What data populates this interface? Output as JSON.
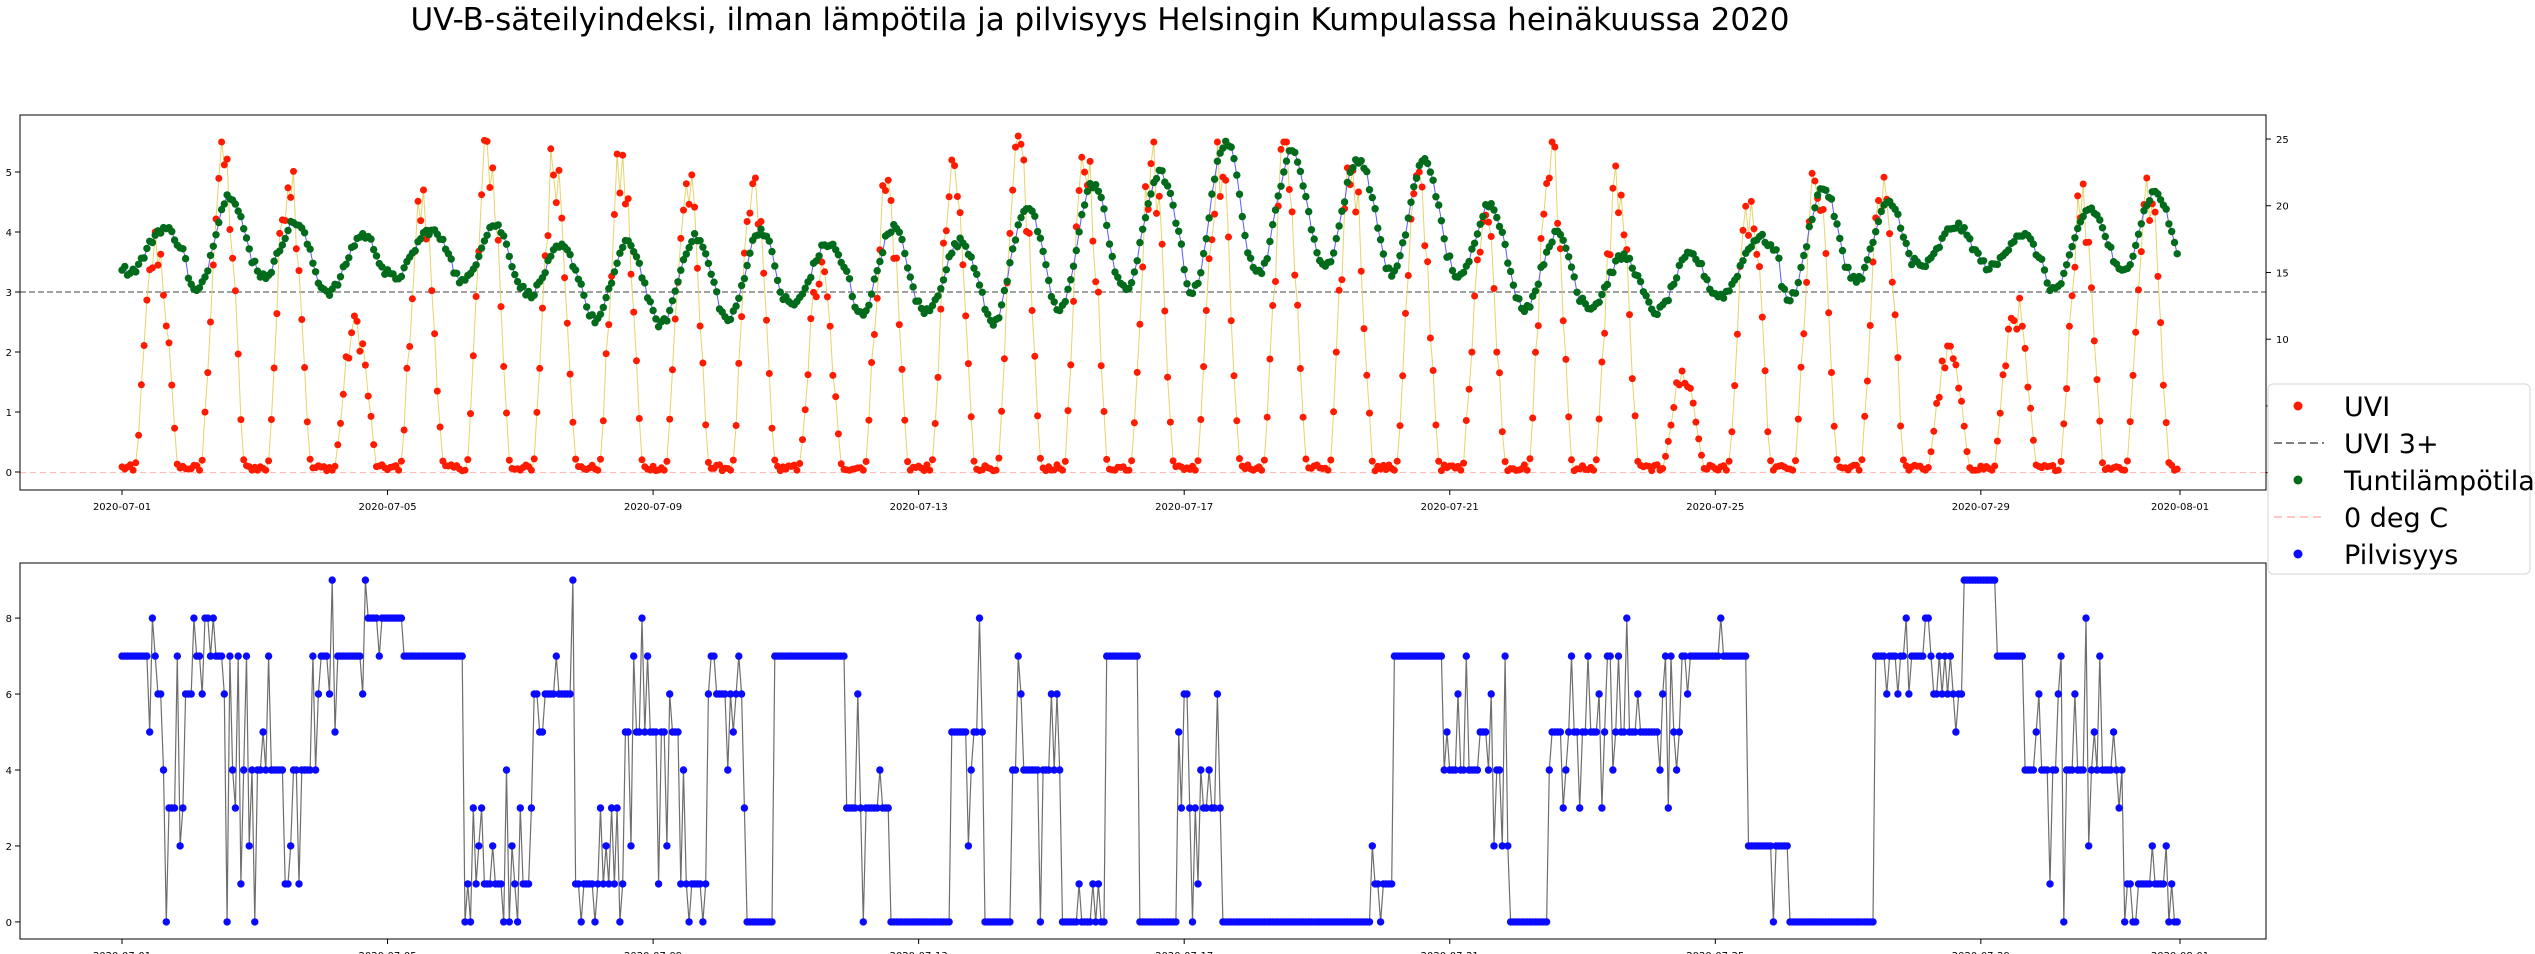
{
  "title": "UV-B-säteilyindeksi, ilman lämpötila ja pilvisyys Helsingin Kumpulassa heinäkuussa 2020",
  "colors": {
    "uvi": "#ff1a00",
    "uvi_line": "#e6d36e",
    "temp": "#006b1a",
    "temp_line": "#5a5aff",
    "uvi3": "#808080",
    "zero": "#ffb3b3",
    "cloud": "#0a0aff",
    "cloud_line": "#6e6e6e"
  },
  "legend": {
    "placement": "right",
    "entries": [
      {
        "key": "uvi",
        "label": "UVI",
        "style": "dot"
      },
      {
        "key": "uvi3",
        "label": "UVI 3+",
        "style": "dashed"
      },
      {
        "key": "temp",
        "label": "Tuntilämpötila",
        "style": "dot"
      },
      {
        "key": "zero",
        "label": "0 deg C",
        "style": "dashed-light"
      },
      {
        "key": "cloud",
        "label": "Pilvisyys",
        "style": "dot"
      }
    ]
  },
  "chart_data": [
    {
      "type": "scatter",
      "panel": "top",
      "xlabel": "",
      "ylabel": "",
      "x_range": [
        "2020-07-01",
        "2020-08-01"
      ],
      "x_ticks": [
        "2020-07-01",
        "2020-07-05",
        "2020-07-09",
        "2020-07-13",
        "2020-07-17",
        "2020-07-21",
        "2020-07-25",
        "2020-07-29",
        "2020-08-01"
      ],
      "ylim": [
        -0.3,
        5.95
      ],
      "y_ticks": [
        0,
        1,
        2,
        3,
        4,
        5
      ],
      "y2lim": [
        -1.3,
        26.8
      ],
      "y2_ticks": [
        0,
        5,
        10,
        15,
        20,
        25
      ],
      "hlines": [
        {
          "series": "UVI 3+",
          "axis": "left",
          "y": 3
        },
        {
          "series": "0 deg C",
          "axis": "right",
          "y": 0
        }
      ],
      "grid": false,
      "series": [
        {
          "name": "UVI",
          "axis": "left",
          "unit": "daily peak UVI (hourly points, diurnal profile)",
          "daily_peak": {
            "2020-07-01": 4.0,
            "2020-07-02": 5.5,
            "2020-07-03": 5.4,
            "2020-07-04": 2.6,
            "2020-07-05": 4.7,
            "2020-07-06": 5.6,
            "2020-07-07": 5.5,
            "2020-07-08": 5.3,
            "2020-07-09": 5.0,
            "2020-07-10": 4.9,
            "2020-07-11": 3.5,
            "2020-07-12": 5.0,
            "2020-07-13": 5.2,
            "2020-07-14": 5.6,
            "2020-07-15": 5.5,
            "2020-07-16": 5.5,
            "2020-07-17": 5.5,
            "2020-07-18": 5.5,
            "2020-07-19": 5.4,
            "2020-07-20": 5.0,
            "2020-07-21": 4.6,
            "2020-07-22": 5.5,
            "2020-07-23": 5.1,
            "2020-07-24": 1.7,
            "2020-07-25": 4.6,
            "2020-07-26": 5.0,
            "2020-07-27": 5.2,
            "2020-07-28": 2.1,
            "2020-07-29": 2.9,
            "2020-07-30": 4.8,
            "2020-07-31": 4.9
          }
        },
        {
          "name": "Tuntilämpötila",
          "axis": "right",
          "unit": "°C, daily mean and diurnal amplitude (hourly points)",
          "daily_mean": {
            "2020-07-01": 16.5,
            "2020-07-02": 17.0,
            "2020-07-03": 17.5,
            "2020-07-04": 15.5,
            "2020-07-05": 16.0,
            "2020-07-06": 17.0,
            "2020-07-07": 15.5,
            "2020-07-08": 14.5,
            "2020-07-09": 14.0,
            "2020-07-10": 15.0,
            "2020-07-11": 14.5,
            "2020-07-12": 15.5,
            "2020-07-13": 14.5,
            "2020-07-14": 15.0,
            "2020-07-15": 16.5,
            "2020-07-16": 17.5,
            "2020-07-17": 19.0,
            "2020-07-18": 19.5,
            "2020-07-19": 19.5,
            "2020-07-20": 19.5,
            "2020-07-21": 18.5,
            "2020-07-22": 15.5,
            "2020-07-23": 14.5,
            "2020-07-24": 14.0,
            "2020-07-25": 14.5,
            "2020-07-26": 17.0,
            "2020-07-27": 17.5,
            "2020-07-28": 17.0,
            "2020-07-29": 17.0,
            "2020-07-30": 16.0,
            "2020-07-31": 18.0
          },
          "daily_amplitude": {
            "2020-07-01": 1.5,
            "2020-07-02": 3.5,
            "2020-07-03": 2.5,
            "2020-07-04": 2.0,
            "2020-07-05": 1.5,
            "2020-07-06": 2.5,
            "2020-07-07": 2.0,
            "2020-07-08": 3.0,
            "2020-07-09": 3.0,
            "2020-07-10": 3.5,
            "2020-07-11": 2.0,
            "2020-07-12": 3.5,
            "2020-07-13": 2.5,
            "2020-07-14": 4.0,
            "2020-07-15": 4.5,
            "2020-07-16": 4.0,
            "2020-07-17": 5.5,
            "2020-07-18": 4.5,
            "2020-07-19": 4.0,
            "2020-07-20": 4.5,
            "2020-07-21": 3.5,
            "2020-07-22": 3.0,
            "2020-07-23": 2.0,
            "2020-07-24": 2.0,
            "2020-07-25": 1.5,
            "2020-07-26": 4.0,
            "2020-07-27": 3.0,
            "2020-07-28": 1.5,
            "2020-07-29": 1.5,
            "2020-07-30": 2.5,
            "2020-07-31": 3.0
          }
        }
      ]
    },
    {
      "type": "line",
      "panel": "bottom",
      "xlabel": "",
      "ylabel": "",
      "x_range": [
        "2020-07-01",
        "2020-08-01"
      ],
      "x_ticks": [
        "2020-07-01",
        "2020-07-05",
        "2020-07-09",
        "2020-07-13",
        "2020-07-17",
        "2020-07-21",
        "2020-07-25",
        "2020-07-29",
        "2020-08-01"
      ],
      "ylim": [
        -0.45,
        9.45
      ],
      "y_ticks": [
        0,
        2,
        4,
        6,
        8
      ],
      "grid": false,
      "series": [
        {
          "name": "Pilvisyys",
          "unit": "oktas, hourly",
          "segments": [
            {
              "start": "2020-07-01 00:00",
              "end": "2020-07-01 10:00",
              "value": 7
            },
            {
              "start": "2020-07-01 10:00",
              "end": "2020-07-01 16:00",
              "value": 5,
              "variability": 3
            },
            {
              "start": "2020-07-01 16:00",
              "end": "2020-07-02 00:00",
              "value": 3,
              "variability": 4
            },
            {
              "start": "2020-07-02 00:00",
              "end": "2020-07-02 14:00",
              "value": 7,
              "variability": 1
            },
            {
              "start": "2020-07-02 14:00",
              "end": "2020-07-04 00:00",
              "value": 4,
              "variability": 4
            },
            {
              "start": "2020-07-04 00:00",
              "end": "2020-07-04 16:00",
              "value": 7,
              "variability": 3
            },
            {
              "start": "2020-07-04 16:00",
              "end": "2020-07-05 06:00",
              "value": 8,
              "variability": 1
            },
            {
              "start": "2020-07-05 06:00",
              "end": "2020-07-06 04:00",
              "value": 7
            },
            {
              "start": "2020-07-06 04:00",
              "end": "2020-07-07 04:00",
              "value": 1,
              "variability": 3
            },
            {
              "start": "2020-07-07 04:00",
              "end": "2020-07-07 20:00",
              "value": 6,
              "variability": 3
            },
            {
              "start": "2020-07-07 20:00",
              "end": "2020-07-08 14:00",
              "value": 1,
              "variability": 2
            },
            {
              "start": "2020-07-08 14:00",
              "end": "2020-07-09 10:00",
              "value": 5,
              "variability": 4
            },
            {
              "start": "2020-07-09 10:00",
              "end": "2020-07-09 20:00",
              "value": 1,
              "variability": 3
            },
            {
              "start": "2020-07-09 20:00",
              "end": "2020-07-10 10:00",
              "value": 6,
              "variability": 3
            },
            {
              "start": "2020-07-10 10:00",
              "end": "2020-07-10 20:00",
              "value": 0,
              "variability": 1
            },
            {
              "start": "2020-07-10 20:00",
              "end": "2020-07-11 22:00",
              "value": 7
            },
            {
              "start": "2020-07-11 22:00",
              "end": "2020-07-12 14:00",
              "value": 3,
              "variability": 4
            },
            {
              "start": "2020-07-12 14:00",
              "end": "2020-07-13 12:00",
              "value": 0,
              "variability": 1
            },
            {
              "start": "2020-07-13 12:00",
              "end": "2020-07-14 00:00",
              "value": 5,
              "variability": 4
            },
            {
              "start": "2020-07-14 00:00",
              "end": "2020-07-14 10:00",
              "value": 0
            },
            {
              "start": "2020-07-14 10:00",
              "end": "2020-07-15 04:00",
              "value": 4,
              "variability": 4
            },
            {
              "start": "2020-07-15 04:00",
              "end": "2020-07-15 20:00",
              "value": 0,
              "variability": 1
            },
            {
              "start": "2020-07-15 20:00",
              "end": "2020-07-16 08:00",
              "value": 7
            },
            {
              "start": "2020-07-16 08:00",
              "end": "2020-07-16 22:00",
              "value": 0,
              "variability": 1
            },
            {
              "start": "2020-07-16 22:00",
              "end": "2020-07-17 14:00",
              "value": 3,
              "variability": 4
            },
            {
              "start": "2020-07-17 14:00",
              "end": "2020-07-19 20:00",
              "value": 0
            },
            {
              "start": "2020-07-19 20:00",
              "end": "2020-07-20 04:00",
              "value": 1,
              "variability": 1
            },
            {
              "start": "2020-07-20 04:00",
              "end": "2020-07-20 22:00",
              "value": 7
            },
            {
              "start": "2020-07-20 22:00",
              "end": "2020-07-21 22:00",
              "value": 4,
              "variability": 4
            },
            {
              "start": "2020-07-21 22:00",
              "end": "2020-07-22 12:00",
              "value": 0
            },
            {
              "start": "2020-07-22 12:00",
              "end": "2020-07-24 12:00",
              "value": 5,
              "variability": 3
            },
            {
              "start": "2020-07-24 12:00",
              "end": "2020-07-25 12:00",
              "value": 7,
              "variability": 1
            },
            {
              "start": "2020-07-25 12:00",
              "end": "2020-07-26 04:00",
              "value": 2,
              "variability": 3
            },
            {
              "start": "2020-07-26 04:00",
              "end": "2020-07-27 10:00",
              "value": 0
            },
            {
              "start": "2020-07-27 10:00",
              "end": "2020-07-28 10:00",
              "value": 7,
              "variability": 1
            },
            {
              "start": "2020-07-28 10:00",
              "end": "2020-07-28 18:00",
              "value": 6,
              "variability": 2
            },
            {
              "start": "2020-07-28 18:00",
              "end": "2020-07-29 06:00",
              "value": 9
            },
            {
              "start": "2020-07-29 06:00",
              "end": "2020-07-29 16:00",
              "value": 7
            },
            {
              "start": "2020-07-29 16:00",
              "end": "2020-07-31 04:00",
              "value": 4,
              "variability": 4
            },
            {
              "start": "2020-07-31 04:00",
              "end": "2020-07-31 22:00",
              "value": 1,
              "variability": 1
            },
            {
              "start": "2020-07-31 22:00",
              "end": "2020-08-01 00:00",
              "value": 0
            }
          ]
        }
      ]
    }
  ]
}
